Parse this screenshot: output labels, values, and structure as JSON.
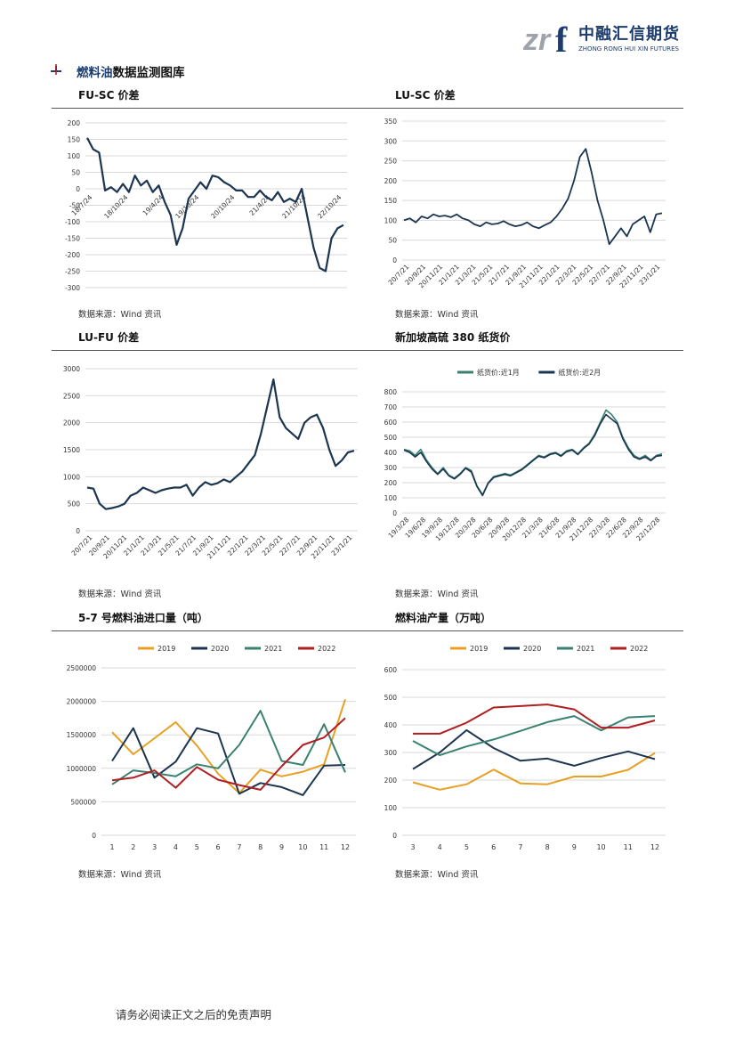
{
  "header": {
    "logo_mark": "zr",
    "logo_mark_f": "f",
    "company_cn": "中融汇信期货",
    "company_en": "ZHONG RONG HUI XIN FUTURES",
    "colors": {
      "navy": "#1d3c6e",
      "gray": "#9ea3ab"
    }
  },
  "section": {
    "title_part1": "燃料油",
    "title_part2": "数据监测图库",
    "bullet": "arrow-bullet-icon"
  },
  "footer": {
    "disclaimer": "请务必阅读正文之后的免责声明"
  },
  "panels": [
    {
      "title": "FU-SC 价差",
      "source": "数据来源：Wind 资讯"
    },
    {
      "title": "LU-SC 价差",
      "source": "数据来源：Wind 资讯"
    },
    {
      "title": "LU-FU 价差",
      "source": "数据来源：Wind 资讯"
    },
    {
      "title": "新加坡高硫 380 纸货价",
      "source": "数据来源：Wind 资讯"
    },
    {
      "title": "5-7 号燃料油进口量（吨）",
      "source": "数据来源：Wind 资讯"
    },
    {
      "title": "燃料油产量（万吨）",
      "source": "数据来源：Wind 资讯"
    }
  ],
  "chart_data": [
    {
      "type": "line",
      "title": "FU-SC 价差",
      "ylim": [
        -300,
        200
      ],
      "yticks": [
        "200",
        "150",
        "100",
        "50",
        "0",
        "-50",
        "-100",
        "-150",
        "-200",
        "-250",
        "-300"
      ],
      "xticks": [
        "18/7/24",
        "18/10/24",
        "19/4/24",
        "19/10/24",
        "20/10/24",
        "21/4/24",
        "21/10/24",
        "22/10/24"
      ],
      "series": [
        {
          "color": "#1c3550",
          "values": [
            155,
            120,
            110,
            -5,
            5,
            -10,
            15,
            -10,
            40,
            10,
            25,
            -10,
            10,
            -40,
            -80,
            -170,
            -120,
            -30,
            -5,
            20,
            0,
            40,
            35,
            20,
            10,
            -5,
            -5,
            -25,
            -25,
            -5,
            -25,
            -35,
            -10,
            -40,
            -30,
            -40,
            0,
            -90,
            -180,
            -240,
            -250,
            -150,
            -120,
            -110
          ]
        }
      ],
      "grid": true
    },
    {
      "type": "line",
      "title": "LU-SC 价差",
      "ylim": [
        0,
        350
      ],
      "yticks": [
        "350",
        "300",
        "250",
        "200",
        "150",
        "100",
        "50",
        "0"
      ],
      "xticks": [
        "20/7/21",
        "20/9/21",
        "20/11/21",
        "21/1/21",
        "21/3/21",
        "21/5/21",
        "21/7/21",
        "21/9/21",
        "21/11/21",
        "22/1/21",
        "22/3/21",
        "22/5/21",
        "22/7/21",
        "22/9/21",
        "22/11/21",
        "23/1/21"
      ],
      "series": [
        {
          "color": "#1c3550",
          "values": [
            100,
            105,
            95,
            110,
            105,
            115,
            110,
            112,
            108,
            115,
            105,
            100,
            90,
            85,
            95,
            90,
            92,
            98,
            90,
            85,
            88,
            95,
            85,
            80,
            88,
            95,
            110,
            130,
            155,
            200,
            260,
            280,
            220,
            150,
            100,
            40,
            60,
            80,
            60,
            90,
            100,
            110,
            70,
            115,
            118
          ]
        }
      ],
      "grid": true
    },
    {
      "type": "line",
      "title": "LU-FU 价差",
      "ylim": [
        0,
        3000
      ],
      "yticks": [
        "3000",
        "2500",
        "2000",
        "1500",
        "1000",
        "500",
        "0"
      ],
      "xticks": [
        "20/7/21",
        "20/9/21",
        "20/11/21",
        "21/1/21",
        "21/3/21",
        "21/5/21",
        "21/7/21",
        "21/9/21",
        "21/11/21",
        "22/1/21",
        "22/3/21",
        "22/5/21",
        "22/7/21",
        "22/9/21",
        "22/11/21",
        "23/1/21"
      ],
      "series": [
        {
          "color": "#1c3550",
          "values": [
            800,
            780,
            500,
            400,
            420,
            450,
            500,
            650,
            700,
            800,
            750,
            700,
            750,
            780,
            800,
            800,
            850,
            650,
            800,
            900,
            850,
            880,
            950,
            900,
            1000,
            1100,
            1250,
            1400,
            1800,
            2300,
            2800,
            2100,
            1900,
            1800,
            1700,
            2000,
            2100,
            2150,
            1900,
            1500,
            1200,
            1300,
            1450,
            1480
          ]
        }
      ],
      "grid": true
    },
    {
      "type": "line",
      "title": "新加坡高硫 380 纸货价",
      "ylim": [
        0,
        800
      ],
      "yticks": [
        "800",
        "700",
        "600",
        "500",
        "400",
        "300",
        "200",
        "100",
        "0"
      ],
      "xticks": [
        "19/3/28",
        "19/6/28",
        "19/9/28",
        "19/12/28",
        "20/3/28",
        "20/6/28",
        "20/9/28",
        "20/12/28",
        "21/3/28",
        "21/6/28",
        "21/9/28",
        "21/12/28",
        "22/3/28",
        "22/6/28",
        "22/9/28",
        "22/12/28"
      ],
      "legend": "top",
      "series": [
        {
          "name": "纸货价:近1月",
          "color": "#3b8170",
          "values": [
            420,
            410,
            380,
            420,
            350,
            300,
            260,
            300,
            250,
            230,
            260,
            300,
            280,
            180,
            120,
            200,
            240,
            250,
            260,
            250,
            270,
            290,
            320,
            350,
            380,
            370,
            390,
            400,
            380,
            410,
            420,
            390,
            430,
            460,
            520,
            600,
            680,
            650,
            600,
            500,
            430,
            380,
            360,
            380,
            350,
            380,
            390
          ]
        },
        {
          "name": "纸货价:近2月",
          "color": "#1c3550",
          "values": [
            415,
            400,
            370,
            400,
            340,
            290,
            255,
            290,
            245,
            225,
            255,
            295,
            270,
            175,
            115,
            195,
            235,
            245,
            255,
            245,
            265,
            285,
            315,
            345,
            375,
            365,
            385,
            395,
            375,
            405,
            415,
            385,
            425,
            455,
            510,
            590,
            650,
            620,
            590,
            490,
            420,
            370,
            355,
            370,
            345,
            375,
            380
          ]
        }
      ],
      "grid": true
    },
    {
      "type": "line",
      "title": "5-7 号燃料油进口量（吨）",
      "ylim": [
        0,
        2500000
      ],
      "yticks": [
        "2500000",
        "2000000",
        "1500000",
        "1000000",
        "500000",
        "0"
      ],
      "categories": [
        "1",
        "2",
        "3",
        "4",
        "5",
        "6",
        "7",
        "8",
        "9",
        "10",
        "11",
        "12"
      ],
      "legend": "top",
      "series": [
        {
          "name": "2019",
          "color": "#e7a023",
          "values": [
            1540000,
            1210000,
            1450000,
            1690000,
            1340000,
            920000,
            630000,
            980000,
            880000,
            950000,
            1060000,
            2030000
          ]
        },
        {
          "name": "2020",
          "color": "#1c3550",
          "values": [
            1110000,
            1600000,
            860000,
            1100000,
            1600000,
            1520000,
            620000,
            780000,
            720000,
            600000,
            1040000,
            1050000
          ]
        },
        {
          "name": "2021",
          "color": "#3b8170",
          "values": [
            760000,
            970000,
            930000,
            880000,
            1060000,
            1000000,
            1350000,
            1860000,
            1110000,
            1050000,
            1660000,
            940000
          ]
        },
        {
          "name": "2022",
          "color": "#b01e22",
          "values": [
            820000,
            860000,
            970000,
            710000,
            1020000,
            830000,
            750000,
            680000,
            1030000,
            1350000,
            1460000,
            1750000
          ]
        }
      ],
      "grid": true
    },
    {
      "type": "line",
      "title": "燃料油产量（万吨）",
      "ylim": [
        0,
        600
      ],
      "yticks": [
        "600",
        "500",
        "400",
        "300",
        "200",
        "100",
        "0"
      ],
      "categories": [
        "3",
        "4",
        "5",
        "6",
        "7",
        "8",
        "9",
        "10",
        "11",
        "12"
      ],
      "legend": "top",
      "series": [
        {
          "name": "2019",
          "color": "#e7a023",
          "values": [
            192,
            165,
            185,
            238,
            188,
            185,
            213,
            213,
            237,
            298
          ]
        },
        {
          "name": "2020",
          "color": "#1c3550",
          "values": [
            240,
            300,
            381,
            316,
            270,
            278,
            252,
            280,
            304,
            276
          ]
        },
        {
          "name": "2021",
          "color": "#3b8170",
          "values": [
            342,
            290,
            322,
            347,
            378,
            410,
            432,
            380,
            427,
            432
          ]
        },
        {
          "name": "2022",
          "color": "#b01e22",
          "values": [
            368,
            368,
            408,
            463,
            468,
            474,
            456,
            390,
            390,
            416
          ]
        }
      ],
      "grid": true
    }
  ]
}
